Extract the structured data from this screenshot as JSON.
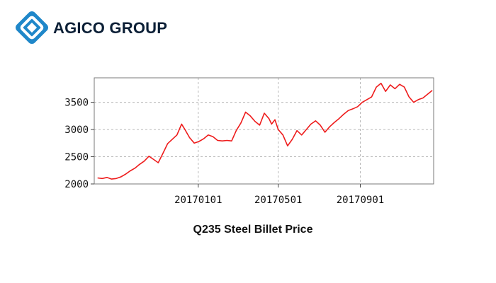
{
  "brand": {
    "name": "AGICO GROUP",
    "logo_icon": "diamond-logo-icon",
    "logo_color": "#1f87c9"
  },
  "chart_data": {
    "type": "line",
    "title": "Q235 Steel Billet Price",
    "xlabel": "",
    "ylabel": "",
    "x_range": [
      "2016-07-29",
      "2017-12-20"
    ],
    "ylim": [
      2000,
      3950
    ],
    "y_ticks": [
      2000,
      2500,
      3000,
      3500
    ],
    "x_ticks": [
      "20170101",
      "20170501",
      "20170901"
    ],
    "x_tick_dates": [
      "2017-01-01",
      "2017-05-01",
      "2017-09-01"
    ],
    "grid": true,
    "line_color": "#ee1c1c",
    "series": [
      {
        "x": [
          "2016-08-03",
          "2016-08-10",
          "2016-08-17",
          "2016-08-24",
          "2016-08-31",
          "2016-09-07",
          "2016-09-14",
          "2016-09-21",
          "2016-09-28",
          "2016-10-05",
          "2016-10-12",
          "2016-10-19",
          "2016-10-26",
          "2016-11-02",
          "2016-11-09",
          "2016-11-16",
          "2016-11-23",
          "2016-11-30",
          "2016-12-07",
          "2016-12-12",
          "2016-12-19",
          "2016-12-26",
          "2017-01-02",
          "2017-01-09",
          "2017-01-16",
          "2017-01-23",
          "2017-01-30",
          "2017-02-06",
          "2017-02-13",
          "2017-02-20",
          "2017-02-27",
          "2017-03-06",
          "2017-03-13",
          "2017-03-20",
          "2017-03-27",
          "2017-04-03",
          "2017-04-10",
          "2017-04-17",
          "2017-04-21",
          "2017-04-26",
          "2017-05-01",
          "2017-05-08",
          "2017-05-15",
          "2017-05-22",
          "2017-05-29",
          "2017-06-05",
          "2017-06-12",
          "2017-06-19",
          "2017-06-26",
          "2017-07-03",
          "2017-07-10",
          "2017-07-17",
          "2017-07-24",
          "2017-07-31",
          "2017-08-07",
          "2017-08-14",
          "2017-08-21",
          "2017-08-28",
          "2017-09-04",
          "2017-09-11",
          "2017-09-18",
          "2017-09-25",
          "2017-10-02",
          "2017-10-09",
          "2017-10-16",
          "2017-10-23",
          "2017-10-30",
          "2017-11-06",
          "2017-11-13",
          "2017-11-20",
          "2017-11-27",
          "2017-12-04",
          "2017-12-11",
          "2017-12-18"
        ],
        "y": [
          2110,
          2100,
          2120,
          2090,
          2100,
          2130,
          2180,
          2240,
          2290,
          2360,
          2420,
          2510,
          2450,
          2390,
          2560,
          2740,
          2820,
          2900,
          3100,
          3000,
          2850,
          2750,
          2780,
          2830,
          2900,
          2870,
          2800,
          2790,
          2800,
          2790,
          2980,
          3120,
          3320,
          3250,
          3150,
          3080,
          3300,
          3200,
          3100,
          3180,
          3000,
          2900,
          2700,
          2820,
          2980,
          2900,
          3000,
          3100,
          3160,
          3080,
          2950,
          3050,
          3130,
          3200,
          3280,
          3350,
          3380,
          3420,
          3500,
          3550,
          3600,
          3780,
          3850,
          3700,
          3820,
          3750,
          3830,
          3780,
          3600,
          3500,
          3550,
          3580,
          3650,
          3720
        ]
      }
    ]
  }
}
